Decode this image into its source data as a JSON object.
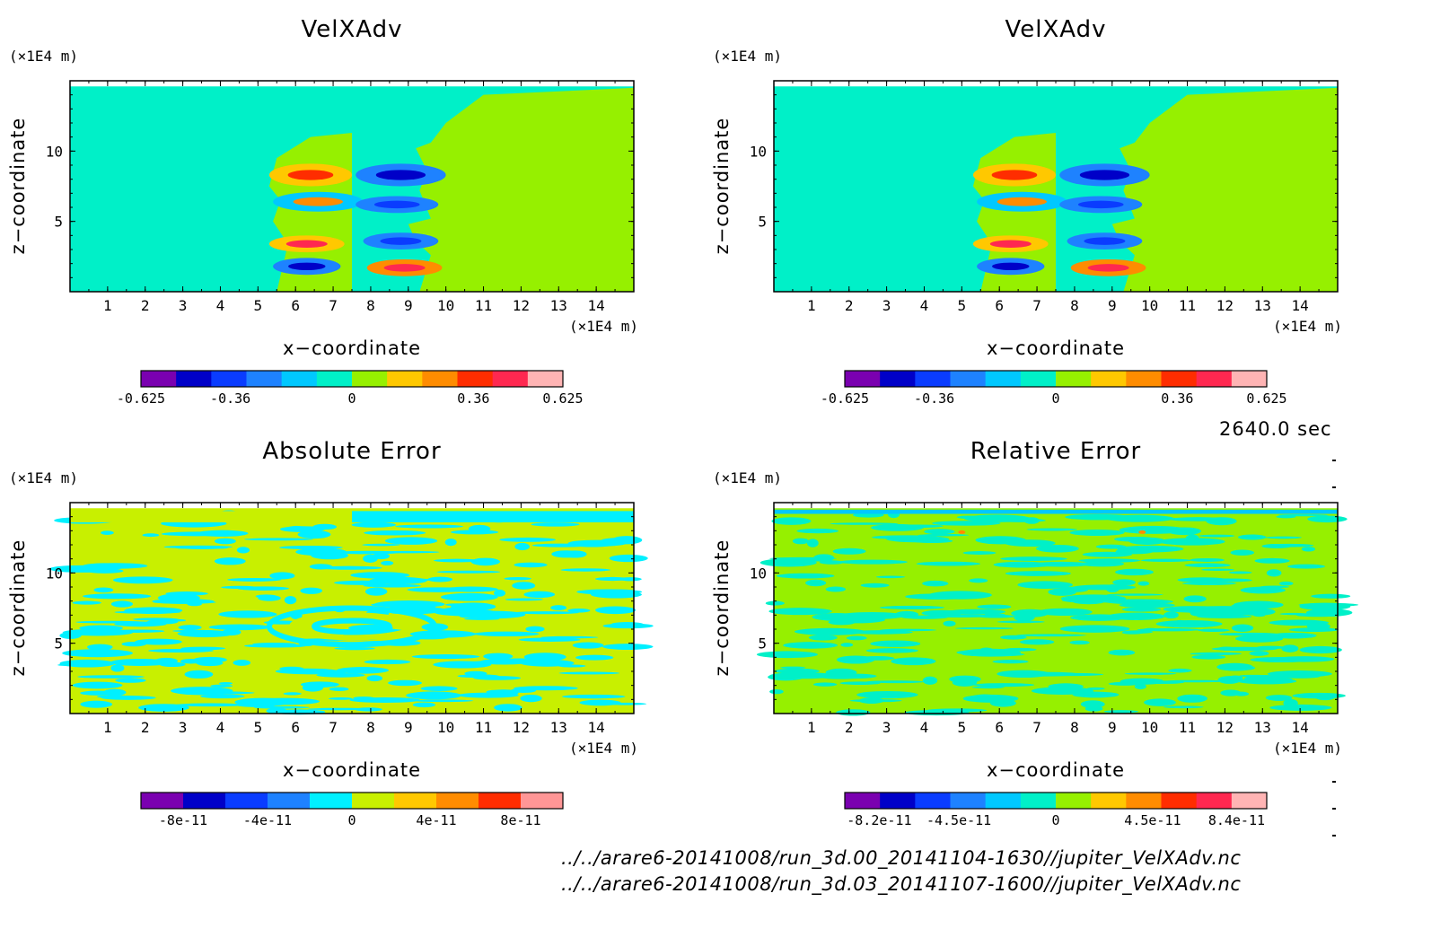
{
  "panels": [
    {
      "id": "p1",
      "title": "VelXAdv",
      "kind": "field",
      "colorbar": {
        "colors": [
          "#7a00b0",
          "#0000c8",
          "#0a3cff",
          "#1e82ff",
          "#00c8ff",
          "#00f0c8",
          "#96f000",
          "#ffc800",
          "#ff8c00",
          "#ff2d00",
          "#ff2850",
          "#ffb4b4"
        ],
        "tick_labels": [
          "-0.625",
          "-0.36",
          "0",
          "0.36",
          "0.625"
        ],
        "tick_values": [
          -0.625,
          -0.36,
          0,
          0.36,
          0.625
        ],
        "range": [
          -0.625,
          0.625
        ]
      }
    },
    {
      "id": "p2",
      "title": "VelXAdv",
      "kind": "field",
      "colorbar": {
        "colors": [
          "#7a00b0",
          "#0000c8",
          "#0a3cff",
          "#1e82ff",
          "#00c8ff",
          "#00f0c8",
          "#96f000",
          "#ffc800",
          "#ff8c00",
          "#ff2d00",
          "#ff2850",
          "#ffb4b4"
        ],
        "tick_labels": [
          "-0.625",
          "-0.36",
          "0",
          "0.36",
          "0.625"
        ],
        "tick_values": [
          -0.625,
          -0.36,
          0,
          0.36,
          0.625
        ],
        "range": [
          -0.625,
          0.625
        ]
      }
    },
    {
      "id": "p3",
      "title": "Absolute Error",
      "kind": "abs",
      "colorbar": {
        "colors": [
          "#7a00b0",
          "#0000c8",
          "#0a3cff",
          "#1e82ff",
          "#00f0ff",
          "#c8f000",
          "#ffc800",
          "#ff8c00",
          "#ff2d00",
          "#ff9696"
        ],
        "tick_labels": [
          "-8e-11",
          "-4e-11",
          "0",
          "4e-11",
          "8e-11"
        ],
        "tick_values": [
          -8e-11,
          -4e-11,
          0,
          4e-11,
          8e-11
        ],
        "range": [
          -1e-10,
          1e-10
        ]
      }
    },
    {
      "id": "p4",
      "title": "Relative Error",
      "kind": "rel",
      "colorbar": {
        "colors": [
          "#7a00b0",
          "#0000c8",
          "#0a3cff",
          "#1e82ff",
          "#00c8ff",
          "#00f0c8",
          "#96f000",
          "#ffc800",
          "#ff8c00",
          "#ff2d00",
          "#ff2850",
          "#ffb4b4"
        ],
        "tick_labels": [
          "-8.2e-11",
          "-4.5e-11",
          "0",
          "4.5e-11",
          "8.4e-11"
        ],
        "tick_values": [
          -8.2e-11,
          -4.5e-11,
          0,
          4.5e-11,
          8.4e-11
        ],
        "range": [
          -9.8e-11,
          9.8e-11
        ]
      }
    }
  ],
  "axes": {
    "x_label": "x−coordinate",
    "y_label": "z−coordinate",
    "x_unit": "(×1E4 m)",
    "y_unit": "(×1E4 m)",
    "x_ticks": [
      "1",
      "2",
      "3",
      "4",
      "5",
      "6",
      "7",
      "8",
      "9",
      "10",
      "11",
      "12",
      "13",
      "14"
    ],
    "y_ticks": [
      "5",
      "10"
    ]
  },
  "time_label": "2640.0 sec",
  "footer": {
    "line1": "../../arare6-20141008/run_3d.00_20141104-1630//jupiter_VelXAdv.nc",
    "line2": "../../arare6-20141008/run_3d.03_20141107-1600//jupiter_VelXAdv.nc"
  },
  "chart_data": [
    {
      "type": "heatmap",
      "title": "VelXAdv",
      "xlabel": "x−coordinate",
      "ylabel": "z−coordinate",
      "xlim": [
        0,
        15
      ],
      "ylim": [
        0,
        15
      ],
      "colorbar_range": [
        -0.625,
        0.625
      ],
      "colorbar_ticks": [
        -0.625,
        -0.36,
        0,
        0.36,
        0.625
      ]
    },
    {
      "type": "heatmap",
      "title": "VelXAdv",
      "xlabel": "x−coordinate",
      "ylabel": "z−coordinate",
      "xlim": [
        0,
        15
      ],
      "ylim": [
        0,
        15
      ],
      "colorbar_range": [
        -0.625,
        0.625
      ],
      "colorbar_ticks": [
        -0.625,
        -0.36,
        0,
        0.36,
        0.625
      ]
    },
    {
      "type": "heatmap",
      "title": "Absolute Error",
      "xlabel": "x−coordinate",
      "ylabel": "z−coordinate",
      "xlim": [
        0,
        15
      ],
      "ylim": [
        0,
        15
      ],
      "colorbar_range": [
        -1e-10,
        1e-10
      ],
      "colorbar_ticks": [
        -8e-11,
        -4e-11,
        0,
        4e-11,
        8e-11
      ]
    },
    {
      "type": "heatmap",
      "title": "Relative Error",
      "xlabel": "x−coordinate",
      "ylabel": "z−coordinate",
      "xlim": [
        0,
        15
      ],
      "ylim": [
        0,
        15
      ],
      "colorbar_range": [
        -9.8e-11,
        9.8e-11
      ],
      "colorbar_ticks": [
        -8.2e-11,
        -4.5e-11,
        0,
        4.5e-11,
        8.4e-11
      ]
    }
  ]
}
